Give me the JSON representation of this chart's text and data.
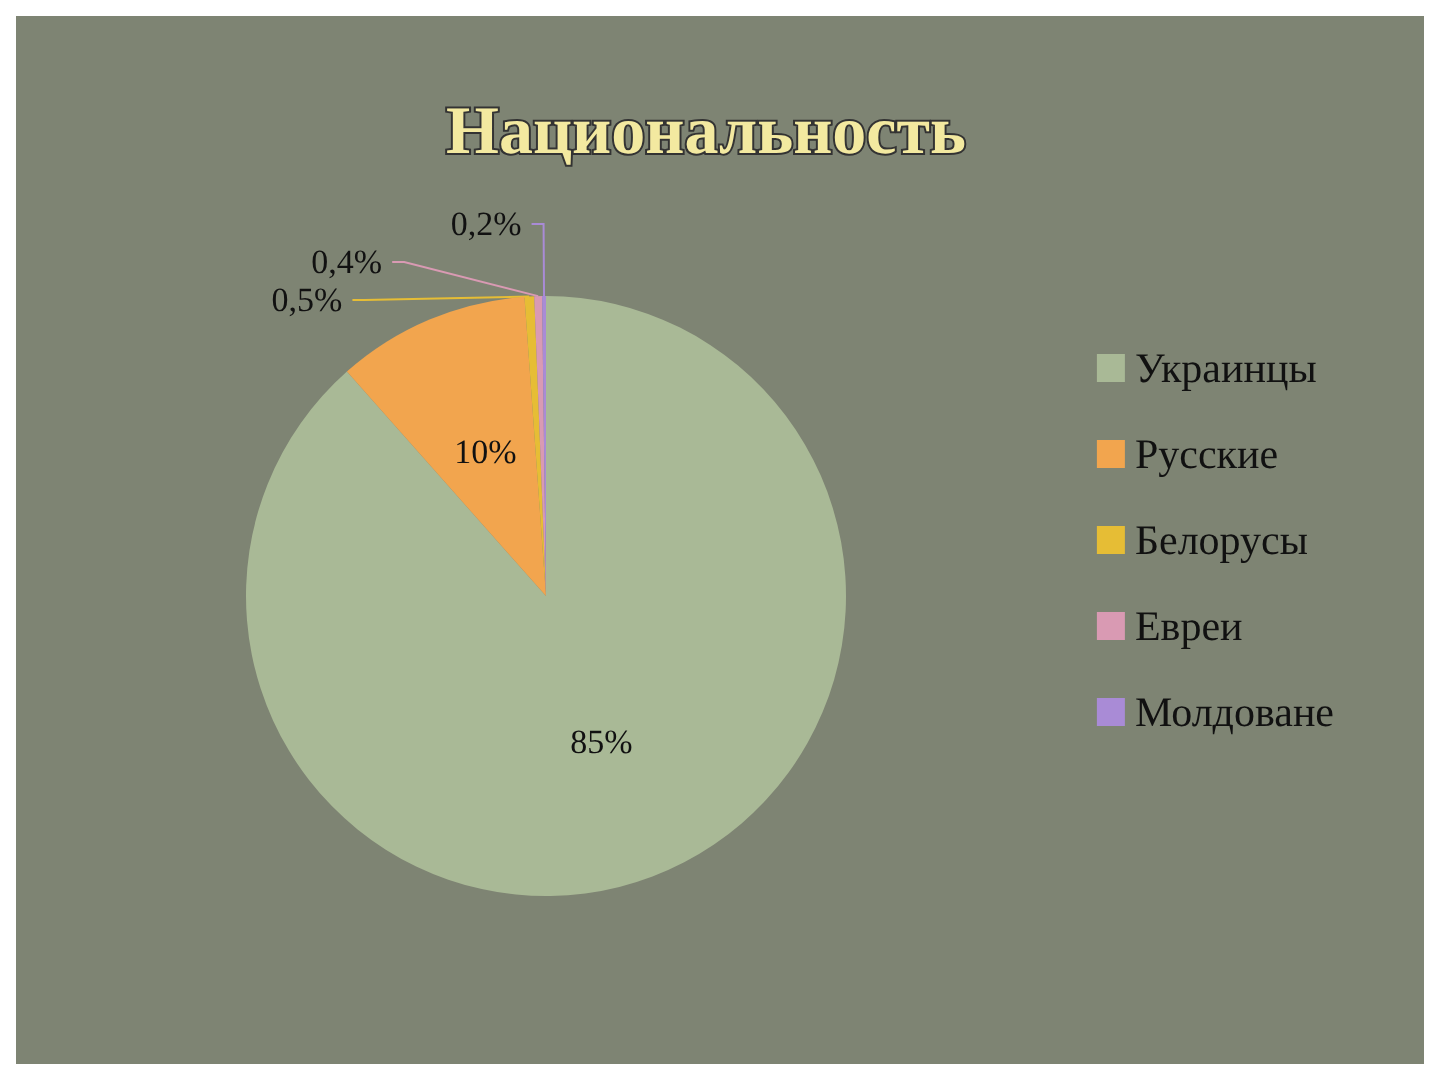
{
  "chart_data": {
    "type": "pie",
    "title": "Национальность",
    "categories": [
      "Украинцы",
      "Русские",
      "Белорусы",
      "Евреи",
      "Молдоване"
    ],
    "values": [
      85,
      10,
      0.5,
      0.4,
      0.2
    ],
    "value_labels": [
      "85%",
      "10%",
      "0,5%",
      "0,4%",
      "0,2%"
    ],
    "colors": [
      "#a9b996",
      "#f2a54e",
      "#e6bd35",
      "#d99ab3",
      "#a98bd6"
    ],
    "legend": "right"
  }
}
